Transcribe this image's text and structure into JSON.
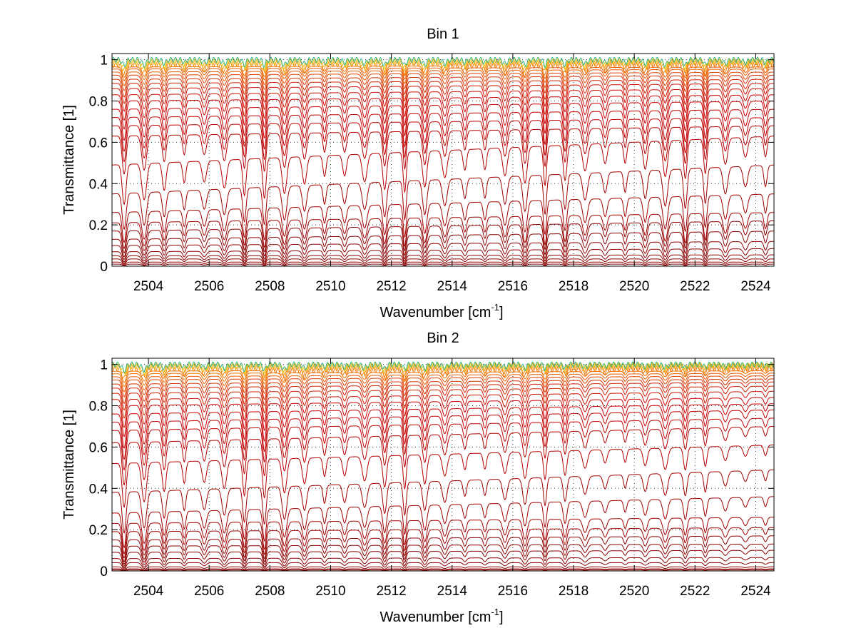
{
  "chart_data": [
    {
      "type": "line",
      "title": "Bin 1",
      "xlabel": "Wavenumber [cm",
      "xlabel_sup": "-1",
      "xlabel_end": "]",
      "ylabel": "Transmittance [1]",
      "xlim": [
        2502.8,
        2524.6
      ],
      "ylim": [
        0,
        1.03
      ],
      "grid": true,
      "xticks": [
        2504,
        2506,
        2508,
        2510,
        2512,
        2514,
        2516,
        2518,
        2520,
        2522,
        2524
      ],
      "yticks": [
        0,
        0.2,
        0.4,
        0.6,
        0.8,
        1
      ],
      "xtick_labels": [
        "2504",
        "2506",
        "2508",
        "2510",
        "2512",
        "2514",
        "2516",
        "2518",
        "2520",
        "2522",
        "2524"
      ],
      "ytick_labels": [
        "0",
        "0.2",
        "0.4",
        "0.6",
        "0.8",
        "1"
      ],
      "line_spacing": 0.66,
      "levels_start": [
        0.0,
        0.01,
        0.02,
        0.035,
        0.05,
        0.07,
        0.1,
        0.13,
        0.17,
        0.21,
        0.26,
        0.35,
        0.49,
        0.63,
        0.68,
        0.72,
        0.76,
        0.8,
        0.83,
        0.86,
        0.885,
        0.905,
        0.925,
        0.94,
        0.955,
        0.965,
        0.975,
        0.985,
        0.993,
        1.0
      ],
      "levels_end": [
        0.0,
        0.01,
        0.02,
        0.035,
        0.055,
        0.085,
        0.12,
        0.17,
        0.22,
        0.26,
        0.35,
        0.49,
        0.63,
        0.68,
        0.72,
        0.76,
        0.8,
        0.83,
        0.86,
        0.885,
        0.905,
        0.925,
        0.94,
        0.955,
        0.965,
        0.975,
        0.985,
        0.99,
        0.995,
        1.0
      ],
      "line_depth": 0.18,
      "line_depth_decay": 0.0,
      "colors": [
        "#8b0000",
        "#a00000",
        "#b40000",
        "#c00000",
        "#c80000",
        "#cc1100",
        "#d02000",
        "#d43000",
        "#e04000",
        "#ea5a00",
        "#f07000",
        "#f58200",
        "#f7a000",
        "#eac000",
        "#9fc21a",
        "#33b58a"
      ]
    },
    {
      "type": "line",
      "title": "Bin 2",
      "xlabel": "Wavenumber [cm",
      "xlabel_sup": "-1",
      "xlabel_end": "]",
      "ylabel": "Transmittance [1]",
      "xlim": [
        2502.8,
        2524.6
      ],
      "ylim": [
        0,
        1.03
      ],
      "grid": true,
      "xticks": [
        2504,
        2506,
        2508,
        2510,
        2512,
        2514,
        2516,
        2518,
        2520,
        2522,
        2524
      ],
      "yticks": [
        0,
        0.2,
        0.4,
        0.6,
        0.8,
        1
      ],
      "xtick_labels": [
        "2504",
        "2506",
        "2508",
        "2510",
        "2512",
        "2514",
        "2516",
        "2518",
        "2520",
        "2522",
        "2524"
      ],
      "ytick_labels": [
        "0",
        "0.2",
        "0.4",
        "0.6",
        "0.8",
        "1"
      ],
      "line_spacing": 0.66,
      "levels_start": [
        0.0,
        0.005,
        0.01,
        0.02,
        0.04,
        0.06,
        0.09,
        0.12,
        0.15,
        0.19,
        0.23,
        0.28,
        0.38,
        0.52,
        0.62,
        0.68,
        0.72,
        0.76,
        0.8,
        0.83,
        0.86,
        0.885,
        0.905,
        0.925,
        0.94,
        0.955,
        0.967,
        0.978,
        0.988,
        0.995,
        1.0
      ],
      "levels_end": [
        0.0,
        0.005,
        0.01,
        0.02,
        0.04,
        0.065,
        0.1,
        0.13,
        0.17,
        0.21,
        0.26,
        0.36,
        0.49,
        0.61,
        0.7,
        0.74,
        0.78,
        0.81,
        0.84,
        0.87,
        0.895,
        0.915,
        0.93,
        0.945,
        0.958,
        0.97,
        0.98,
        0.988,
        0.994,
        0.998,
        1.0
      ],
      "line_depth": 0.2,
      "line_depth_decay": 0.55,
      "colors": [
        "#8b0000",
        "#a00000",
        "#b40000",
        "#c00000",
        "#c80000",
        "#cc1100",
        "#d02000",
        "#d43000",
        "#e04000",
        "#ea5a00",
        "#f07000",
        "#f58200",
        "#f7a000",
        "#eac000",
        "#9fc21a",
        "#33b58a"
      ]
    }
  ]
}
